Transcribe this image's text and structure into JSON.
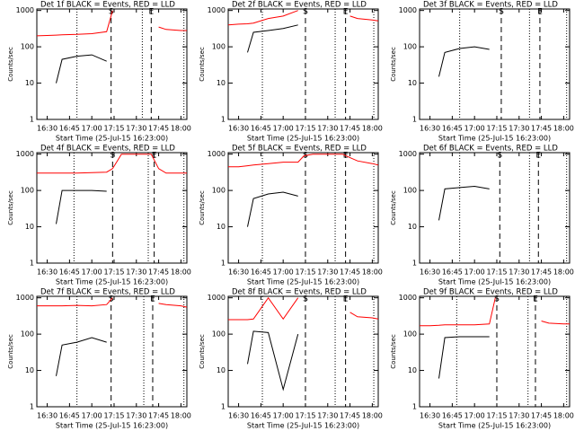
{
  "chart_data": [
    {
      "type": "line",
      "title": "Det 1f BLACK = Events, RED = LLD",
      "x_label": "Start Time (25-Jul-15 16:23:00)",
      "y_label": "Counts/sec",
      "x": [
        983,
        990,
        996,
        1000,
        1010,
        1020,
        1030,
        1034,
        1040,
        1050,
        1060,
        1065,
        1070,
        1080,
        1084
      ],
      "xlim": [
        983,
        1084
      ],
      "xticks": [
        {
          "value": 990,
          "label": "16:30"
        },
        {
          "value": 1005,
          "label": "16:45"
        },
        {
          "value": 1020,
          "label": "17:00"
        },
        {
          "value": 1035,
          "label": "17:15"
        },
        {
          "value": 1050,
          "label": "17:30"
        },
        {
          "value": 1065,
          "label": "17:45"
        },
        {
          "value": 1080,
          "label": "18:00"
        }
      ],
      "ylim": [
        1,
        1100
      ],
      "yticks": [
        1,
        10,
        100,
        1000
      ],
      "log_y": true,
      "series": [
        {
          "color": "#000000",
          "values": [
            null,
            null,
            10,
            45,
            55,
            60,
            40,
            null,
            null,
            null,
            null,
            null,
            null,
            null,
            null
          ]
        },
        {
          "color": "#ff0000",
          "values": [
            200,
            205,
            210,
            215,
            220,
            230,
            260,
            1000,
            null,
            null,
            null,
            350,
            300,
            280,
            280
          ]
        }
      ],
      "markers": [
        {
          "label": "S",
          "x": 1033
        },
        {
          "label": "E",
          "x": 1060
        }
      ],
      "dotted_x": [
        1010,
        1054,
        1082
      ]
    },
    {
      "type": "line",
      "title": "Det 2f BLACK = Events, RED = LLD",
      "x_label": "Start Time (25-Jul-15 16:23:00)",
      "y_label": "Counts/sec",
      "x": [
        983,
        990,
        996,
        1000,
        1010,
        1020,
        1030,
        1034,
        1040,
        1050,
        1060,
        1065,
        1070,
        1080,
        1084
      ],
      "xlim": [
        983,
        1084
      ],
      "xticks": [
        {
          "value": 990,
          "label": "16:30"
        },
        {
          "value": 1005,
          "label": "16:45"
        },
        {
          "value": 1020,
          "label": "17:00"
        },
        {
          "value": 1035,
          "label": "17:15"
        },
        {
          "value": 1050,
          "label": "17:30"
        },
        {
          "value": 1065,
          "label": "17:45"
        },
        {
          "value": 1080,
          "label": "18:00"
        }
      ],
      "ylim": [
        1,
        1100
      ],
      "yticks": [
        1,
        10,
        100,
        1000
      ],
      "log_y": true,
      "series": [
        {
          "color": "#000000",
          "values": [
            null,
            null,
            70,
            250,
            280,
            320,
            400,
            null,
            null,
            null,
            null,
            null,
            null,
            null,
            null
          ]
        },
        {
          "color": "#ff0000",
          "values": [
            400,
            420,
            430,
            450,
            600,
            700,
            1000,
            null,
            null,
            null,
            null,
            700,
            600,
            550,
            520
          ]
        }
      ],
      "markers": [
        {
          "label": "S",
          "x": 1035
        },
        {
          "label": "E",
          "x": 1062
        }
      ],
      "dotted_x": [
        1006,
        1055,
        1081
      ]
    },
    {
      "type": "line",
      "title": "Det 3f BLACK = Events, RED = LLD",
      "x_label": "Start Time (25-Jul-15 16:23:00)",
      "y_label": "Counts/sec",
      "x": [
        983,
        990,
        996,
        1000,
        1010,
        1020,
        1030,
        1034,
        1040,
        1050,
        1060,
        1065,
        1070,
        1080,
        1084
      ],
      "xlim": [
        983,
        1084
      ],
      "xticks": [
        {
          "value": 990,
          "label": "16:30"
        },
        {
          "value": 1005,
          "label": "16:45"
        },
        {
          "value": 1020,
          "label": "17:00"
        },
        {
          "value": 1035,
          "label": "17:15"
        },
        {
          "value": 1050,
          "label": "17:30"
        },
        {
          "value": 1065,
          "label": "17:45"
        },
        {
          "value": 1080,
          "label": "18:00"
        }
      ],
      "ylim": [
        1,
        1100
      ],
      "yticks": [
        1,
        10,
        100,
        1000
      ],
      "log_y": true,
      "series": [
        {
          "color": "#000000",
          "values": [
            null,
            null,
            15,
            70,
            90,
            100,
            85,
            null,
            null,
            null,
            null,
            null,
            null,
            null,
            null
          ]
        }
      ],
      "markers": [
        {
          "label": "S",
          "x": 1038
        },
        {
          "label": "E",
          "x": 1064
        }
      ],
      "dotted_x": [
        1010,
        1057,
        1082
      ]
    },
    {
      "type": "line",
      "title": "Det 4f BLACK = Events, RED = LLD",
      "x_label": "Start Time (25-Jul-15 16:23:00)",
      "y_label": "Counts/sec",
      "x": [
        983,
        990,
        996,
        1000,
        1010,
        1020,
        1030,
        1034,
        1040,
        1050,
        1060,
        1065,
        1070,
        1080,
        1084
      ],
      "xlim": [
        983,
        1084
      ],
      "xticks": [
        {
          "value": 990,
          "label": "16:30"
        },
        {
          "value": 1005,
          "label": "16:45"
        },
        {
          "value": 1020,
          "label": "17:00"
        },
        {
          "value": 1035,
          "label": "17:15"
        },
        {
          "value": 1050,
          "label": "17:30"
        },
        {
          "value": 1065,
          "label": "17:45"
        },
        {
          "value": 1080,
          "label": "18:00"
        }
      ],
      "ylim": [
        1,
        1100
      ],
      "yticks": [
        1,
        10,
        100,
        1000
      ],
      "log_y": true,
      "series": [
        {
          "color": "#000000",
          "values": [
            null,
            null,
            12,
            100,
            100,
            100,
            95,
            null,
            null,
            null,
            null,
            null,
            null,
            null,
            null
          ]
        },
        {
          "color": "#ff0000",
          "values": [
            300,
            300,
            300,
            300,
            300,
            310,
            320,
            400,
            1000,
            1000,
            1000,
            400,
            300,
            300,
            300
          ]
        }
      ],
      "markers": [
        {
          "label": "S",
          "x": 1034
        },
        {
          "label": "E",
          "x": 1062
        }
      ],
      "dotted_x": [
        1008,
        1058,
        1082
      ]
    },
    {
      "type": "line",
      "title": "Det 5f BLACK = Events, RED = LLD",
      "x_label": "Start Time (25-Jul-15 16:23:00)",
      "y_label": "Counts/sec",
      "x": [
        983,
        990,
        996,
        1000,
        1010,
        1020,
        1030,
        1034,
        1040,
        1050,
        1060,
        1065,
        1070,
        1080,
        1084
      ],
      "xlim": [
        983,
        1084
      ],
      "xticks": [
        {
          "value": 990,
          "label": "16:30"
        },
        {
          "value": 1005,
          "label": "16:45"
        },
        {
          "value": 1020,
          "label": "17:00"
        },
        {
          "value": 1035,
          "label": "17:15"
        },
        {
          "value": 1050,
          "label": "17:30"
        },
        {
          "value": 1065,
          "label": "17:45"
        },
        {
          "value": 1080,
          "label": "18:00"
        }
      ],
      "ylim": [
        1,
        1100
      ],
      "yticks": [
        1,
        10,
        100,
        1000
      ],
      "log_y": true,
      "series": [
        {
          "color": "#000000",
          "values": [
            null,
            null,
            10,
            60,
            80,
            90,
            70,
            null,
            null,
            null,
            null,
            null,
            null,
            null,
            null
          ]
        },
        {
          "color": "#ff0000",
          "values": [
            450,
            450,
            480,
            500,
            550,
            600,
            600,
            900,
            1000,
            1000,
            1000,
            800,
            650,
            550,
            500
          ]
        }
      ],
      "markers": [
        {
          "label": "S",
          "x": 1035
        },
        {
          "label": "E",
          "x": 1062
        }
      ],
      "dotted_x": [
        1006,
        1055,
        1081
      ]
    },
    {
      "type": "line",
      "title": "Det 6f BLACK = Events, RED = LLD",
      "x_label": "Start Time (25-Jul-15 16:23:00)",
      "y_label": "Counts/sec",
      "x": [
        983,
        990,
        996,
        1000,
        1010,
        1020,
        1030,
        1034,
        1040,
        1050,
        1060,
        1065,
        1070,
        1080,
        1084
      ],
      "xlim": [
        983,
        1084
      ],
      "xticks": [
        {
          "value": 990,
          "label": "16:30"
        },
        {
          "value": 1005,
          "label": "16:45"
        },
        {
          "value": 1020,
          "label": "17:00"
        },
        {
          "value": 1035,
          "label": "17:15"
        },
        {
          "value": 1050,
          "label": "17:30"
        },
        {
          "value": 1065,
          "label": "17:45"
        },
        {
          "value": 1080,
          "label": "18:00"
        }
      ],
      "ylim": [
        1,
        1100
      ],
      "yticks": [
        1,
        10,
        100,
        1000
      ],
      "log_y": true,
      "series": [
        {
          "color": "#000000",
          "values": [
            null,
            null,
            15,
            110,
            120,
            130,
            110,
            null,
            null,
            null,
            null,
            null,
            null,
            null,
            null
          ]
        }
      ],
      "markers": [
        {
          "label": "S",
          "x": 1037
        },
        {
          "label": "E",
          "x": 1063
        }
      ],
      "dotted_x": [
        1010,
        1057,
        1082
      ]
    },
    {
      "type": "line",
      "title": "Det 7f BLACK = Events, RED = LLD",
      "x_label": "Start Time (25-Jul-15 16:23:00)",
      "y_label": "Counts/sec",
      "x": [
        983,
        990,
        996,
        1000,
        1010,
        1020,
        1030,
        1034,
        1040,
        1050,
        1060,
        1065,
        1070,
        1080,
        1084
      ],
      "xlim": [
        983,
        1084
      ],
      "xticks": [
        {
          "value": 990,
          "label": "16:30"
        },
        {
          "value": 1005,
          "label": "16:45"
        },
        {
          "value": 1020,
          "label": "17:00"
        },
        {
          "value": 1035,
          "label": "17:15"
        },
        {
          "value": 1050,
          "label": "17:30"
        },
        {
          "value": 1065,
          "label": "17:45"
        },
        {
          "value": 1080,
          "label": "18:00"
        }
      ],
      "ylim": [
        1,
        1100
      ],
      "yticks": [
        1,
        10,
        100,
        1000
      ],
      "log_y": true,
      "series": [
        {
          "color": "#000000",
          "values": [
            null,
            null,
            7,
            50,
            60,
            80,
            60,
            null,
            null,
            null,
            null,
            null,
            null,
            null,
            null
          ]
        },
        {
          "color": "#ff0000",
          "values": [
            600,
            600,
            600,
            600,
            620,
            600,
            650,
            1000,
            null,
            null,
            null,
            700,
            650,
            600,
            550
          ]
        }
      ],
      "markers": [
        {
          "label": "S",
          "x": 1033
        },
        {
          "label": "E",
          "x": 1061
        }
      ],
      "dotted_x": [
        1010,
        1055,
        1082
      ]
    },
    {
      "type": "line",
      "title": "Det 8f BLACK = Events, RED = LLD",
      "x_label": "Start Time (25-Jul-15 16:23:00)",
      "y_label": "Counts/sec",
      "x": [
        983,
        990,
        996,
        1000,
        1010,
        1020,
        1030,
        1034,
        1040,
        1050,
        1060,
        1065,
        1070,
        1080,
        1084
      ],
      "xlim": [
        983,
        1084
      ],
      "xticks": [
        {
          "value": 990,
          "label": "16:30"
        },
        {
          "value": 1005,
          "label": "16:45"
        },
        {
          "value": 1020,
          "label": "17:00"
        },
        {
          "value": 1035,
          "label": "17:15"
        },
        {
          "value": 1050,
          "label": "17:30"
        },
        {
          "value": 1065,
          "label": "17:45"
        },
        {
          "value": 1080,
          "label": "18:00"
        }
      ],
      "ylim": [
        1,
        1100
      ],
      "yticks": [
        1,
        10,
        100,
        1000
      ],
      "log_y": true,
      "series": [
        {
          "color": "#000000",
          "values": [
            null,
            null,
            15,
            120,
            110,
            3,
            100,
            null,
            null,
            null,
            null,
            null,
            null,
            null,
            null
          ]
        },
        {
          "color": "#ff0000",
          "values": [
            250,
            250,
            250,
            260,
            1000,
            260,
            1000,
            null,
            null,
            null,
            null,
            400,
            300,
            280,
            260
          ]
        }
      ],
      "markers": [
        {
          "label": "S",
          "x": 1035
        },
        {
          "label": "E",
          "x": 1062
        }
      ],
      "dotted_x": [
        1006,
        1055,
        1081
      ]
    },
    {
      "type": "line",
      "title": "Det 9f BLACK = Events, RED = LLD",
      "x_label": "Start Time (25-Jul-15 16:23:00)",
      "y_label": "Counts/sec",
      "x": [
        983,
        990,
        996,
        1000,
        1010,
        1020,
        1030,
        1034,
        1040,
        1050,
        1060,
        1065,
        1070,
        1080,
        1084
      ],
      "xlim": [
        983,
        1084
      ],
      "xticks": [
        {
          "value": 990,
          "label": "16:30"
        },
        {
          "value": 1005,
          "label": "16:45"
        },
        {
          "value": 1020,
          "label": "17:00"
        },
        {
          "value": 1035,
          "label": "17:15"
        },
        {
          "value": 1050,
          "label": "17:30"
        },
        {
          "value": 1065,
          "label": "17:45"
        },
        {
          "value": 1080,
          "label": "18:00"
        }
      ],
      "ylim": [
        1,
        1100
      ],
      "yticks": [
        1,
        10,
        100,
        1000
      ],
      "log_y": true,
      "series": [
        {
          "color": "#000000",
          "values": [
            null,
            null,
            6,
            80,
            85,
            85,
            85,
            null,
            null,
            null,
            null,
            null,
            null,
            null,
            null
          ]
        },
        {
          "color": "#ff0000",
          "values": [
            170,
            170,
            175,
            180,
            180,
            180,
            190,
            1000,
            null,
            null,
            null,
            230,
            200,
            190,
            190
          ]
        }
      ],
      "markers": [
        {
          "label": "S",
          "x": 1035
        },
        {
          "label": "E",
          "x": 1061
        }
      ],
      "dotted_x": [
        1008,
        1056,
        1082
      ]
    }
  ]
}
